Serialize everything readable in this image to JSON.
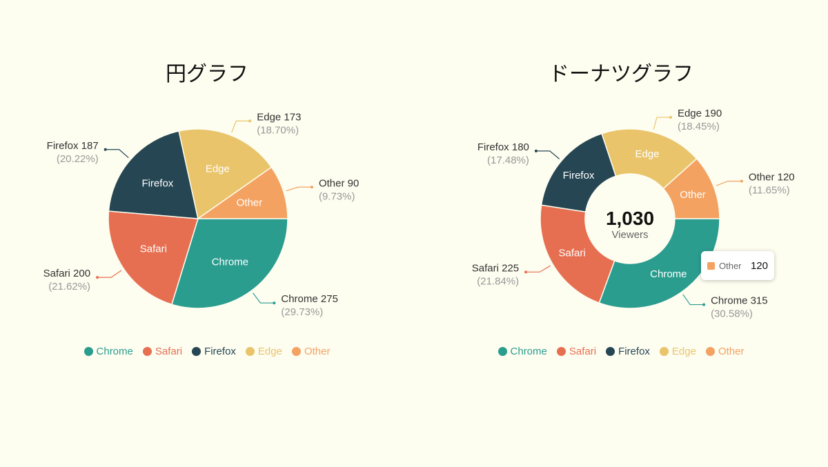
{
  "colors": {
    "Chrome": "#2a9d8f",
    "Safari": "#e76f51",
    "Firefox": "#264653",
    "Edge": "#e9c46a",
    "Other": "#f4a261"
  },
  "chart_data": [
    {
      "type": "pie",
      "title": "円グラフ",
      "categories": [
        "Chrome",
        "Safari",
        "Firefox",
        "Edge",
        "Other"
      ],
      "values": [
        275,
        200,
        187,
        173,
        90
      ],
      "percent_labels": [
        "(29.73%)",
        "(21.62%)",
        "(20.22%)",
        "(18.70%)",
        "(9.73%)"
      ],
      "legend": [
        "Chrome",
        "Safari",
        "Firefox",
        "Edge",
        "Other"
      ],
      "legend_placement": "bottom"
    },
    {
      "type": "pie",
      "subtype": "donut",
      "title": "ドーナツグラフ",
      "categories": [
        "Chrome",
        "Safari",
        "Firefox",
        "Edge",
        "Other"
      ],
      "values": [
        315,
        225,
        180,
        190,
        120
      ],
      "percent_labels": [
        "(30.58%)",
        "(21.84%)",
        "(17.48%)",
        "(18.45%)",
        "(11.65%)"
      ],
      "center_total": "1,030",
      "center_label": "Viewers",
      "legend": [
        "Chrome",
        "Safari",
        "Firefox",
        "Edge",
        "Other"
      ],
      "legend_placement": "bottom",
      "tooltip": {
        "name": "Other",
        "value": "120"
      }
    }
  ]
}
